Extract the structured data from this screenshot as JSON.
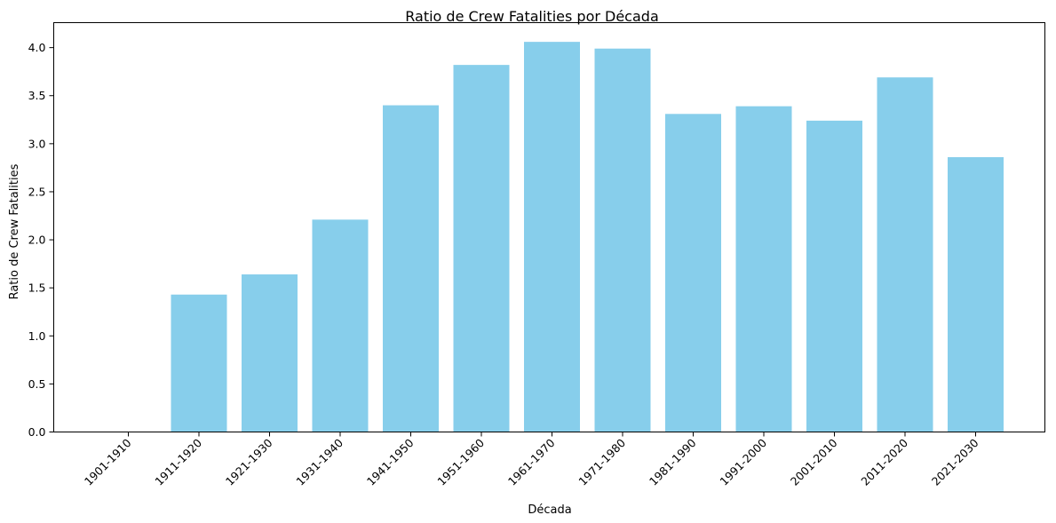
{
  "chart_data": {
    "type": "bar",
    "title": "Ratio de Crew Fatalities por Década",
    "xlabel": "Década",
    "ylabel": "Ratio de Crew Fatalities",
    "categories": [
      "1901-1910",
      "1911-1920",
      "1921-1930",
      "1931-1940",
      "1941-1950",
      "1951-1960",
      "1961-1970",
      "1971-1980",
      "1981-1990",
      "1991-2000",
      "2001-2010",
      "2011-2020",
      "2021-2030"
    ],
    "values": [
      0.0,
      1.43,
      1.64,
      2.21,
      3.4,
      3.82,
      4.06,
      3.99,
      3.31,
      3.39,
      3.24,
      3.69,
      2.86
    ],
    "yticks": [
      "0.0",
      "0.5",
      "1.0",
      "1.5",
      "2.0",
      "2.5",
      "3.0",
      "3.5",
      "4.0"
    ],
    "ylim": [
      0,
      4.26
    ],
    "grid": false,
    "legend": "none",
    "bar_color": "#87ceeb"
  }
}
